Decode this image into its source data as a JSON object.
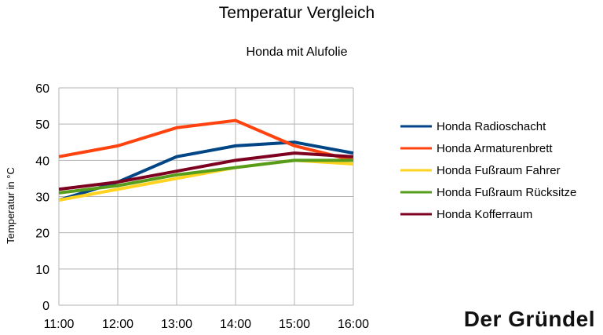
{
  "chart_data": {
    "type": "line",
    "title": "Temperatur Vergleich",
    "subtitle": "Honda mit Alufolie",
    "xlabel": "",
    "ylabel": "Temperatur in °C",
    "x": [
      "11:00",
      "12:00",
      "13:00",
      "14:00",
      "15:00",
      "16:00"
    ],
    "ylim": [
      0,
      60
    ],
    "yticks": [
      0,
      10,
      20,
      30,
      40,
      50,
      60
    ],
    "grid": true,
    "legend": "right",
    "series": [
      {
        "name": "Honda Radioschacht",
        "color": "#004586",
        "values": [
          29,
          34,
          41,
          44,
          45,
          42
        ]
      },
      {
        "name": "Honda Armaturenbrett",
        "color": "#ff420e",
        "values": [
          41,
          44,
          49,
          51,
          44,
          40
        ]
      },
      {
        "name": "Honda Fußraum Fahrer",
        "color": "#ffd320",
        "values": [
          29,
          32,
          35,
          38,
          40,
          39
        ]
      },
      {
        "name": "Honda Fußraum Rücksitze",
        "color": "#579d1c",
        "values": [
          31,
          33,
          36,
          38,
          40,
          40
        ]
      },
      {
        "name": "Honda Kofferraum",
        "color": "#7e0021",
        "values": [
          32,
          34,
          37,
          40,
          42,
          41
        ]
      }
    ]
  },
  "watermark": "Der Gründel"
}
